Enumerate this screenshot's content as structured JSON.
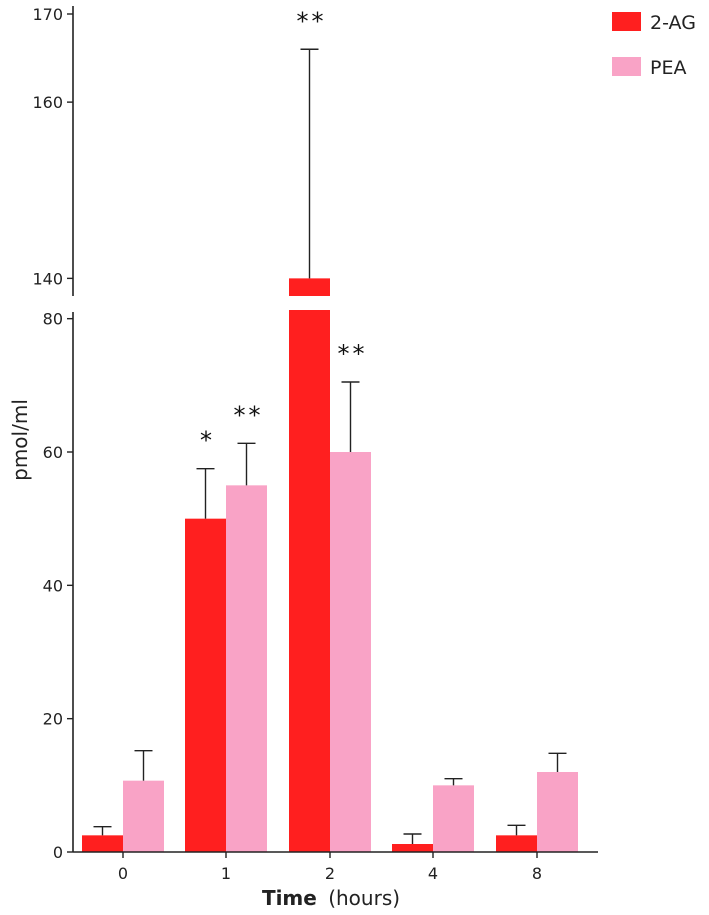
{
  "chart_data": {
    "type": "bar",
    "title": "",
    "xlabel": "Time",
    "xlabel_unit": "(hours)",
    "ylabel": "pmol/ml",
    "categories": [
      "0",
      "1",
      "2",
      "4",
      "8"
    ],
    "series": [
      {
        "name": "2-AG",
        "color": "#ff1f1f",
        "values": [
          2.5,
          50,
          140,
          1.2,
          2.5
        ],
        "errors": [
          1.3,
          7.5,
          26,
          1.5,
          1.5
        ],
        "significance": [
          "",
          "*",
          "**",
          "",
          ""
        ]
      },
      {
        "name": "PEA",
        "color": "#f9a3c6",
        "values": [
          10.7,
          55,
          60,
          10,
          12
        ],
        "errors": [
          4.5,
          6.3,
          10.5,
          1,
          2.8
        ],
        "significance": [
          "",
          "**",
          "**",
          "",
          ""
        ]
      }
    ],
    "y_axis_break": true,
    "lower_ylim": [
      0,
      80
    ],
    "upper_ylim": [
      138,
      170
    ],
    "lower_yticks": [
      "0",
      "20",
      "40",
      "60",
      "80"
    ],
    "upper_yticks": [
      "140",
      "160",
      "170"
    ],
    "legend_position": "top-right",
    "grid": false
  }
}
